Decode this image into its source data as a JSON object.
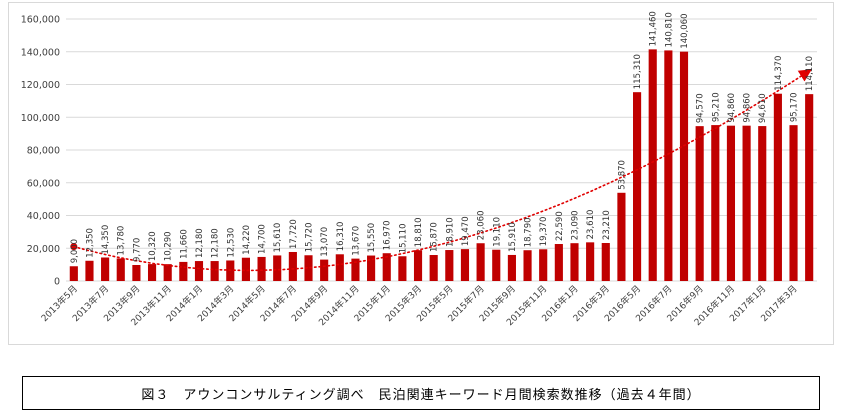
{
  "caption": "図３　アウンコンサルティング調べ　民泊関連キーワード月間検索数推移（過去４年間）",
  "colors": {
    "bar": "#c00000",
    "trend": "#e00000",
    "grid": "#d9d9d9",
    "axis_text": "#404040"
  },
  "chart_data": {
    "type": "bar",
    "title": "",
    "xlabel": "",
    "ylabel": "",
    "ylim": [
      0,
      160000
    ],
    "yticks": [
      "0",
      "20,000",
      "40,000",
      "60,000",
      "80,000",
      "100,000",
      "120,000",
      "140,000",
      "160,000"
    ],
    "grid": "horizontal",
    "legend": "none",
    "trendline": {
      "type": "polynomial",
      "style": "dotted",
      "arrow": true
    },
    "categories": [
      "2013年5月",
      "2013年6月",
      "2013年7月",
      "2013年8月",
      "2013年9月",
      "2013年10月",
      "2013年11月",
      "2013年12月",
      "2014年1月",
      "2014年2月",
      "2014年3月",
      "2014年4月",
      "2014年5月",
      "2014年6月",
      "2014年7月",
      "2014年8月",
      "2014年9月",
      "2014年10月",
      "2014年11月",
      "2014年12月",
      "2015年1月",
      "2015年2月",
      "2015年3月",
      "2015年4月",
      "2015年5月",
      "2015年6月",
      "2015年7月",
      "2015年8月",
      "2015年9月",
      "2015年10月",
      "2015年11月",
      "2015年12月",
      "2016年1月",
      "2016年2月",
      "2016年3月",
      "2016年4月",
      "2016年5月",
      "2016年6月",
      "2016年7月",
      "2016年8月",
      "2016年9月",
      "2016年10月",
      "2016年11月",
      "2016年12月",
      "2017年1月",
      "2017年2月",
      "2017年3月",
      "2017年4月"
    ],
    "values": [
      9000,
      12350,
      14350,
      13780,
      9770,
      10320,
      10290,
      11660,
      12180,
      12180,
      12530,
      14220,
      14700,
      15610,
      17720,
      15720,
      13070,
      16310,
      13670,
      15550,
      16970,
      15110,
      18810,
      15870,
      18910,
      19470,
      23060,
      19110,
      15910,
      18790,
      19370,
      22590,
      23090,
      23610,
      23210,
      53870,
      115310,
      141460,
      140810,
      140060,
      94570,
      95210,
      94860,
      94860,
      94610,
      114370,
      95170,
      114110
    ],
    "data_labels": [
      "9,000",
      "12,350",
      "14,350",
      "13,780",
      "9,770",
      "10,320",
      "10,290",
      "11,660",
      "12,180",
      "12,180",
      "12,530",
      "14,220",
      "14,700",
      "15,610",
      "17,720",
      "15,720",
      "13,070",
      "16,310",
      "13,670",
      "15,550",
      "16,970",
      "15,110",
      "18,810",
      "15,870",
      "18,910",
      "19,470",
      "23,060",
      "19,110",
      "15,910",
      "18,790",
      "19,370",
      "22,590",
      "23,090",
      "23,610",
      "23,210",
      "53,870",
      "115,310",
      "141,460",
      "140,810",
      "140,060",
      "94,570",
      "95,210",
      "94,860",
      "94,860",
      "94,610",
      "114,370",
      "95,170",
      "114,110"
    ],
    "visible_tick_labels": [
      "2013年5月",
      "2013年7月",
      "2013年9月",
      "2013年11月",
      "2014年1月",
      "2014年3月",
      "2014年5月",
      "2014年7月",
      "2014年9月",
      "2014年11月",
      "2015年1月",
      "2015年3月",
      "2015年5月",
      "2015年7月",
      "2015年9月",
      "2015年11月",
      "2016年1月",
      "2016年3月",
      "2016年5月",
      "2016年7月",
      "2016年9月",
      "2016年11月",
      "2017年1月",
      "2017年3月"
    ]
  }
}
